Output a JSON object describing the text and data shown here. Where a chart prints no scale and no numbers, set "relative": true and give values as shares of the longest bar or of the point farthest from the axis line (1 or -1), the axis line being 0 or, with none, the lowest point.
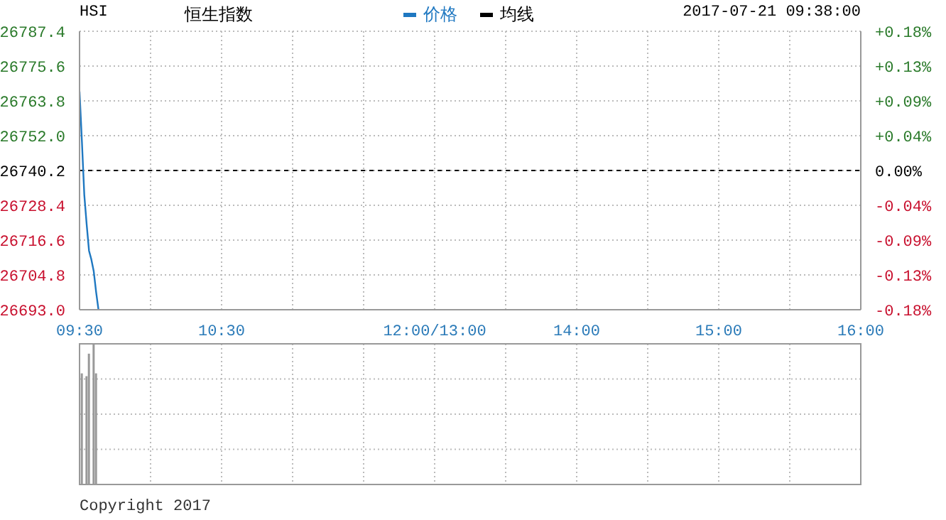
{
  "chart_data": [
    {
      "type": "line",
      "title": "恒生指数",
      "subtitle": "HSI",
      "annotations": [
        "2017-07-21 09:38:00"
      ],
      "categories": [
        "09:30",
        null,
        null,
        null,
        null,
        null,
        null,
        null,
        null,
        null,
        null,
        null,
        null,
        null,
        null,
        null,
        null,
        null,
        null,
        null,
        null,
        null,
        null,
        null,
        null,
        null,
        null,
        null,
        null,
        null,
        null,
        null,
        null,
        null,
        null,
        null,
        null,
        null,
        null,
        null,
        null,
        null,
        null,
        null,
        null,
        null,
        null,
        null,
        null,
        null,
        null,
        null,
        null,
        null,
        null,
        null,
        null,
        null,
        null,
        null,
        "10:30",
        null,
        null,
        null,
        null,
        null,
        null,
        null,
        null,
        null,
        null,
        null,
        null,
        null,
        null,
        null,
        null,
        null,
        null,
        null,
        null,
        null,
        null,
        null,
        null,
        null,
        null,
        null,
        null,
        null,
        null,
        null,
        null,
        null,
        null,
        null,
        null,
        null,
        null,
        null,
        null,
        null,
        null,
        null,
        null,
        null,
        null,
        null,
        null,
        null,
        null,
        null,
        null,
        null,
        null,
        null,
        null,
        null,
        null,
        null,
        null,
        null,
        null,
        null,
        null,
        null,
        null,
        null,
        null,
        null,
        null,
        null,
        null,
        null,
        null,
        null,
        null,
        null,
        null,
        null,
        null,
        null,
        null,
        null,
        null,
        null,
        null,
        null,
        null,
        null,
        "12:00/13:00",
        null,
        null,
        null,
        null,
        null,
        null,
        null,
        null,
        null,
        null,
        null,
        null,
        null,
        null,
        null,
        null,
        null,
        null,
        null,
        null,
        null,
        null,
        null,
        null,
        null,
        null,
        null,
        null,
        null,
        null,
        null,
        null,
        null,
        null,
        null,
        null,
        null,
        null,
        null,
        null,
        null,
        null,
        null,
        null,
        null,
        null,
        null,
        null,
        null,
        null,
        null,
        null,
        null,
        null,
        null,
        null,
        null,
        null,
        null,
        "14:00",
        null,
        null,
        null,
        null,
        null,
        null,
        null,
        null,
        null,
        null,
        null,
        null,
        null,
        null,
        null,
        null,
        null,
        null,
        null,
        null,
        null,
        null,
        null,
        null,
        null,
        null,
        null,
        null,
        null,
        null,
        null,
        null,
        null,
        null,
        null,
        null,
        null,
        null,
        null,
        null,
        null,
        null,
        null,
        null,
        null,
        null,
        null,
        null,
        null,
        null,
        null,
        null,
        null,
        null,
        null,
        null,
        null,
        null,
        null,
        "15:00",
        null,
        null,
        null,
        null,
        null,
        null,
        null,
        null,
        null,
        null,
        null,
        null,
        null,
        null,
        null,
        null,
        null,
        null,
        null,
        null,
        null,
        null,
        null,
        null,
        null,
        null,
        null,
        null,
        null,
        null,
        null,
        null,
        null,
        null,
        null,
        null,
        null,
        null,
        null,
        null,
        null,
        null,
        null,
        null,
        null,
        null,
        null,
        null,
        null,
        null,
        null,
        null,
        null,
        null,
        null,
        null,
        null,
        null,
        null,
        "16:00"
      ],
      "series": [
        {
          "name": "价格",
          "color": "#1f78c1",
          "values": [
            26767,
            26750,
            26732,
            26722,
            26713,
            26710,
            26706,
            26699,
            26693,
            null,
            null,
            null,
            null,
            null,
            null,
            null,
            null,
            null,
            null,
            null,
            null,
            null,
            null,
            null,
            null,
            null,
            null,
            null,
            null,
            null,
            null,
            null,
            null,
            null,
            null,
            null,
            null,
            null,
            null,
            null,
            null,
            null,
            null,
            null,
            null,
            null,
            null,
            null,
            null,
            null,
            null,
            null,
            null,
            null,
            null,
            null,
            null,
            null,
            null,
            null,
            null,
            null,
            null,
            null,
            null,
            null,
            null,
            null,
            null,
            null,
            null,
            null,
            null,
            null,
            null,
            null,
            null,
            null,
            null,
            null,
            null,
            null,
            null,
            null,
            null,
            null,
            null,
            null,
            null,
            null,
            null,
            null,
            null,
            null,
            null,
            null,
            null,
            null,
            null,
            null,
            null,
            null,
            null,
            null,
            null,
            null,
            null,
            null,
            null,
            null,
            null,
            null,
            null,
            null,
            null,
            null,
            null,
            null,
            null,
            null,
            null,
            null,
            null,
            null,
            null,
            null,
            null,
            null,
            null,
            null,
            null,
            null,
            null,
            null,
            null,
            null,
            null,
            null,
            null,
            null,
            null,
            null,
            null,
            null,
            null,
            null,
            null,
            null,
            null,
            null,
            null,
            null,
            null,
            null,
            null,
            null,
            null,
            null,
            null,
            null,
            null,
            null,
            null,
            null,
            null,
            null,
            null,
            null,
            null,
            null,
            null,
            null,
            null,
            null,
            null,
            null,
            null,
            null,
            null,
            null,
            null,
            null,
            null,
            null,
            null,
            null,
            null,
            null,
            null,
            null,
            null,
            null,
            null,
            null,
            null,
            null,
            null,
            null,
            null,
            null,
            null,
            null,
            null,
            null,
            null,
            null,
            null,
            null,
            null,
            null,
            null,
            null,
            null,
            null,
            null,
            null,
            null,
            null,
            null,
            null,
            null,
            null,
            null,
            null,
            null,
            null,
            null,
            null,
            null,
            null,
            null,
            null,
            null,
            null,
            null,
            null,
            null,
            null,
            null,
            null,
            null,
            null,
            null,
            null,
            null,
            null,
            null,
            null,
            null,
            null,
            null,
            null,
            null,
            null,
            null,
            null,
            null,
            null,
            null,
            null,
            null,
            null,
            null,
            null,
            null,
            null,
            null,
            null,
            null,
            null,
            null,
            null,
            null,
            null,
            null,
            null,
            null,
            null,
            null,
            null,
            null,
            null,
            null,
            null,
            null,
            null,
            null,
            null,
            null,
            null,
            null,
            null,
            null,
            null,
            null,
            null,
            null,
            null,
            null,
            null,
            null,
            null,
            null,
            null,
            null,
            null,
            null,
            null,
            null,
            null,
            null,
            null,
            null,
            null,
            null,
            null,
            null,
            null,
            null,
            null,
            null,
            null,
            null,
            null,
            null,
            null,
            null,
            null,
            null,
            null,
            null
          ]
        },
        {
          "name": "均线",
          "color": "#000000",
          "values": [
            null,
            null,
            null,
            null,
            null,
            null,
            null,
            null,
            null,
            null,
            null,
            null,
            null,
            null,
            null,
            null,
            null,
            null,
            null,
            null,
            null,
            null,
            null,
            null,
            null,
            null,
            null,
            null,
            null,
            null,
            null,
            null,
            null,
            null,
            null,
            null,
            null,
            null,
            null,
            null,
            null,
            null,
            null,
            null,
            null,
            null,
            null,
            null,
            null,
            null,
            null,
            null,
            null,
            null,
            null,
            null,
            null,
            null,
            null,
            null,
            null,
            null,
            null,
            null,
            null,
            null,
            null,
            null,
            null,
            null,
            null,
            null,
            null,
            null,
            null,
            null,
            null,
            null,
            null,
            null,
            null,
            null,
            null,
            null,
            null,
            null,
            null,
            null,
            null,
            null,
            null,
            null,
            null,
            null,
            null,
            null,
            null,
            null,
            null,
            null,
            null,
            null,
            null,
            null,
            null,
            null,
            null,
            null,
            null,
            null,
            null,
            null,
            null,
            null,
            null,
            null,
            null,
            null,
            null,
            null,
            null,
            null,
            null,
            null,
            null,
            null,
            null,
            null,
            null,
            null,
            null,
            null,
            null,
            null,
            null,
            null,
            null,
            null,
            null,
            null,
            null,
            null,
            null,
            null,
            null,
            null,
            null,
            null,
            null,
            null,
            null,
            null,
            null,
            null,
            null,
            null,
            null,
            null,
            null,
            null,
            null,
            null,
            null,
            null,
            null,
            null,
            null,
            null,
            null,
            null,
            null,
            null,
            null,
            null,
            null,
            null,
            null,
            null,
            null,
            null,
            null,
            null,
            null,
            null,
            null,
            null,
            null,
            null,
            null,
            null,
            null,
            null,
            null,
            null,
            null,
            null,
            null,
            null,
            null,
            null,
            null,
            null,
            null,
            null,
            null,
            null,
            null,
            null,
            null,
            null,
            null,
            null,
            null,
            null,
            null,
            null,
            null,
            null,
            null,
            null,
            null,
            null,
            null,
            null,
            null,
            null,
            null,
            null,
            null,
            null,
            null,
            null,
            null,
            null,
            null,
            null,
            null,
            null,
            null,
            null,
            null,
            null,
            null,
            null,
            null,
            null,
            null,
            null,
            null,
            null,
            null,
            null,
            null,
            null,
            null,
            null,
            null,
            null,
            null,
            null,
            null,
            null,
            null,
            null,
            null,
            null,
            null,
            null,
            null,
            null,
            null,
            null,
            null,
            null,
            null,
            null,
            null,
            null,
            null,
            null,
            null,
            null,
            null,
            null,
            null,
            null,
            null,
            null,
            null,
            null,
            null,
            null,
            null,
            null,
            null,
            null,
            null,
            null,
            null,
            null,
            null,
            null,
            null,
            null,
            null,
            null,
            null,
            null,
            null,
            null,
            null,
            null,
            null,
            null,
            null,
            null,
            null,
            null,
            null,
            null,
            null,
            null,
            null,
            null,
            null,
            null,
            null,
            null,
            null,
            null,
            null
          ]
        }
      ],
      "ylim": [
        26693.0,
        26787.4
      ],
      "yticks": [
        {
          "value": 26693.0,
          "label": "26693.0"
        },
        {
          "value": 26704.8,
          "label": "26704.8"
        },
        {
          "value": 26716.6,
          "label": "26716.6"
        },
        {
          "value": 26728.4,
          "label": "26728.4"
        },
        {
          "value": 26740.2,
          "label": "26740.2"
        },
        {
          "value": 26752.0,
          "label": "26752.0"
        },
        {
          "value": 26763.8,
          "label": "26763.8"
        },
        {
          "value": 26775.6,
          "label": "26775.6"
        },
        {
          "value": 26787.4,
          "label": "26787.4"
        }
      ],
      "y2lim": [
        -0.176,
        0.176
      ],
      "y2ticks": [
        {
          "value": -0.176,
          "label": "-0.18%"
        },
        {
          "value": -0.132,
          "label": "-0.13%"
        },
        {
          "value": -0.088,
          "label": "-0.09%"
        },
        {
          "value": -0.044,
          "label": "-0.04%"
        },
        {
          "value": 0,
          "label": "0.00%"
        },
        {
          "value": 0.044,
          "label": "+0.04%"
        },
        {
          "value": 0.088,
          "label": "+0.09%"
        },
        {
          "value": 0.132,
          "label": "+0.13%"
        },
        {
          "value": 0.176,
          "label": "+0.18%"
        }
      ],
      "ref_lines": [
        {
          "axis": "y",
          "value": 26740.2,
          "label": null,
          "color": "#000000",
          "line_style": "dashed"
        }
      ],
      "grid": true,
      "legend": "top",
      "marker": "none",
      "line_style": "solid"
    },
    {
      "type": "bar",
      "relative": true,
      "categories": [
        null,
        null,
        null,
        null,
        null,
        null,
        null,
        null,
        null,
        null,
        null,
        null,
        null,
        null,
        null,
        null,
        null,
        null,
        null,
        null,
        null,
        null,
        null,
        null,
        null,
        null,
        null,
        null,
        null,
        null,
        null,
        null,
        null,
        null,
        null,
        null,
        null,
        null,
        null,
        null,
        null,
        null,
        null,
        null,
        null,
        null,
        null,
        null,
        null,
        null,
        null,
        null,
        null,
        null,
        null,
        null,
        null,
        null,
        null,
        null,
        null,
        null,
        null,
        null,
        null,
        null,
        null,
        null,
        null,
        null,
        null,
        null,
        null,
        null,
        null,
        null,
        null,
        null,
        null,
        null,
        null,
        null,
        null,
        null,
        null,
        null,
        null,
        null,
        null,
        null,
        null,
        null,
        null,
        null,
        null,
        null,
        null,
        null,
        null,
        null,
        null,
        null,
        null,
        null,
        null,
        null,
        null,
        null,
        null,
        null,
        null,
        null,
        null,
        null,
        null,
        null,
        null,
        null,
        null,
        null,
        null,
        null,
        null,
        null,
        null,
        null,
        null,
        null,
        null,
        null,
        null,
        null,
        null,
        null,
        null,
        null,
        null,
        null,
        null,
        null,
        null,
        null,
        null,
        null,
        null,
        null,
        null,
        null,
        null,
        null,
        null,
        null,
        null,
        null,
        null,
        null,
        null,
        null,
        null,
        null,
        null,
        null,
        null,
        null,
        null,
        null,
        null,
        null,
        null,
        null,
        null,
        null,
        null,
        null,
        null,
        null,
        null,
        null,
        null,
        null,
        null,
        null,
        null,
        null,
        null,
        null,
        null,
        null,
        null,
        null,
        null,
        null,
        null,
        null,
        null,
        null,
        null,
        null,
        null,
        null,
        null,
        null,
        null,
        null,
        null,
        null,
        null,
        null,
        null,
        null,
        null,
        null,
        null,
        null,
        null,
        null,
        null,
        null,
        null,
        null,
        null,
        null,
        null,
        null,
        null,
        null,
        null,
        null,
        null,
        null,
        null,
        null,
        null,
        null,
        null,
        null,
        null,
        null,
        null,
        null,
        null,
        null,
        null,
        null,
        null,
        null,
        null,
        null,
        null,
        null,
        null,
        null,
        null,
        null,
        null,
        null,
        null,
        null,
        null,
        null,
        null,
        null,
        null,
        null,
        null,
        null,
        null,
        null,
        null,
        null,
        null,
        null,
        null,
        null,
        null,
        null,
        null,
        null,
        null,
        null,
        null,
        null,
        null,
        null,
        null,
        null,
        null,
        null,
        null,
        null,
        null,
        null,
        null,
        null,
        null,
        null,
        null,
        null,
        null,
        null,
        null,
        null,
        null,
        null,
        null,
        null,
        null,
        null,
        null,
        null,
        null,
        null,
        null,
        null,
        null,
        null,
        null,
        null,
        null,
        null,
        null,
        null,
        null,
        null,
        null,
        null,
        null,
        null,
        null,
        null,
        null
      ],
      "values": [
        null,
        0.79,
        null,
        0.77,
        0.93,
        null,
        1,
        0.79,
        null,
        null,
        null,
        null,
        null,
        null,
        null,
        null,
        null,
        null,
        null,
        null,
        null,
        null,
        null,
        null,
        null,
        null,
        null,
        null,
        null,
        null,
        null,
        null,
        null,
        null,
        null,
        null,
        null,
        null,
        null,
        null,
        null,
        null,
        null,
        null,
        null,
        null,
        null,
        null,
        null,
        null,
        null,
        null,
        null,
        null,
        null,
        null,
        null,
        null,
        null,
        null,
        null,
        null,
        null,
        null,
        null,
        null,
        null,
        null,
        null,
        null,
        null,
        null,
        null,
        null,
        null,
        null,
        null,
        null,
        null,
        null,
        null,
        null,
        null,
        null,
        null,
        null,
        null,
        null,
        null,
        null,
        null,
        null,
        null,
        null,
        null,
        null,
        null,
        null,
        null,
        null,
        null,
        null,
        null,
        null,
        null,
        null,
        null,
        null,
        null,
        null,
        null,
        null,
        null,
        null,
        null,
        null,
        null,
        null,
        null,
        null,
        null,
        null,
        null,
        null,
        null,
        null,
        null,
        null,
        null,
        null,
        null,
        null,
        null,
        null,
        null,
        null,
        null,
        null,
        null,
        null,
        null,
        null,
        null,
        null,
        null,
        null,
        null,
        null,
        null,
        null,
        null,
        null,
        null,
        null,
        null,
        null,
        null,
        null,
        null,
        null,
        null,
        null,
        null,
        null,
        null,
        null,
        null,
        null,
        null,
        null,
        null,
        null,
        null,
        null,
        null,
        null,
        null,
        null,
        null,
        null,
        null,
        null,
        null,
        null,
        null,
        null,
        null,
        null,
        null,
        null,
        null,
        null,
        null,
        null,
        null,
        null,
        null,
        null,
        null,
        null,
        null,
        null,
        null,
        null,
        null,
        null,
        null,
        null,
        null,
        null,
        null,
        null,
        null,
        null,
        null,
        null,
        null,
        null,
        null,
        null,
        null,
        null,
        null,
        null,
        null,
        null,
        null,
        null,
        null,
        null,
        null,
        null,
        null,
        null,
        null,
        null,
        null,
        null,
        null,
        null,
        null,
        null,
        null,
        null,
        null,
        null,
        null,
        null,
        null,
        null,
        null,
        null,
        null,
        null,
        null,
        null,
        null,
        null,
        null,
        null,
        null,
        null,
        null,
        null,
        null,
        null,
        null,
        null,
        null,
        null,
        null,
        null,
        null,
        null,
        null,
        null,
        null,
        null,
        null,
        null,
        null,
        null,
        null,
        null,
        null,
        null,
        null,
        null,
        null,
        null,
        null,
        null,
        null,
        null,
        null,
        null,
        null,
        null,
        null,
        null,
        null,
        null,
        null,
        null,
        null,
        null,
        null,
        null,
        null,
        null,
        null,
        null,
        null,
        null,
        null,
        null,
        null,
        null,
        null,
        null,
        null,
        null,
        null,
        null,
        null,
        null,
        null,
        null,
        null,
        null,
        null
      ],
      "color": "#999999",
      "grid": true,
      "annotations": [
        "Copyright 2017"
      ]
    }
  ]
}
